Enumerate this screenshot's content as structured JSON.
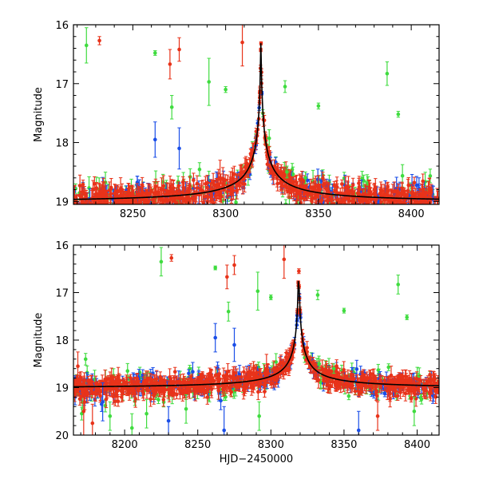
{
  "chart_data": [
    {
      "type": "scatter",
      "panel": "top",
      "title": "",
      "xlabel": "",
      "ylabel": "Magnitude",
      "xlim": [
        8218,
        8415
      ],
      "ylim": [
        19.05,
        16.0
      ],
      "y_inverted": true,
      "xticks": [
        8250,
        8300,
        8350,
        8400
      ],
      "yticks": [
        16,
        17,
        18,
        19
      ],
      "model_curve": {
        "color": "#000000",
        "peak_x": 8319,
        "peak_mag": 16.2,
        "baseline_mag": 19.02,
        "width_days": 7
      },
      "series": [
        {
          "color": "#e8331a",
          "marker": "dot-with-errorbar"
        },
        {
          "color": "#1a4ee8",
          "marker": "dot-with-errorbar"
        },
        {
          "color": "#3fdc3f",
          "marker": "dot-with-errorbar"
        }
      ],
      "outliers": [
        {
          "x": 8225,
          "y": 16.35,
          "err": 0.3,
          "color": "#3fdc3f"
        },
        {
          "x": 8232,
          "y": 16.27,
          "err": 0.07,
          "color": "#e8331a"
        },
        {
          "x": 8262,
          "y": 16.48,
          "err": 0.04,
          "color": "#3fdc3f"
        },
        {
          "x": 8270,
          "y": 16.67,
          "err": 0.25,
          "color": "#e8331a"
        },
        {
          "x": 8275,
          "y": 16.42,
          "err": 0.2,
          "color": "#e8331a"
        },
        {
          "x": 8271,
          "y": 17.4,
          "err": 0.2,
          "color": "#3fdc3f"
        },
        {
          "x": 8291,
          "y": 16.97,
          "err": 0.4,
          "color": "#3fdc3f"
        },
        {
          "x": 8309,
          "y": 16.3,
          "err": 0.4,
          "color": "#e8331a"
        },
        {
          "x": 8332,
          "y": 17.05,
          "err": 0.1,
          "color": "#3fdc3f"
        },
        {
          "x": 8350,
          "y": 17.38,
          "err": 0.05,
          "color": "#3fdc3f"
        },
        {
          "x": 8387,
          "y": 16.83,
          "err": 0.2,
          "color": "#3fdc3f"
        },
        {
          "x": 8393,
          "y": 17.52,
          "err": 0.05,
          "color": "#3fdc3f"
        },
        {
          "x": 8300,
          "y": 17.1,
          "err": 0.05,
          "color": "#3fdc3f"
        },
        {
          "x": 8333,
          "y": 18.5,
          "err": 0.1,
          "color": "#3fdc3f"
        },
        {
          "x": 8343,
          "y": 18.6,
          "err": 0.1,
          "color": "#3fdc3f"
        },
        {
          "x": 8262,
          "y": 17.95,
          "err": 0.3,
          "color": "#1a4ee8"
        },
        {
          "x": 8275,
          "y": 18.1,
          "err": 0.35,
          "color": "#1a4ee8"
        },
        {
          "x": 8297,
          "y": 18.6,
          "err": 0.3,
          "color": "#e8331a"
        }
      ]
    },
    {
      "type": "scatter",
      "panel": "bottom",
      "title": "",
      "xlabel": "HJD−2450000",
      "ylabel": "Magnitude",
      "xlim": [
        8165,
        8415
      ],
      "ylim": [
        20.0,
        16.0
      ],
      "y_inverted": true,
      "xticks": [
        8200,
        8250,
        8300,
        8350,
        8400
      ],
      "yticks": [
        16,
        17,
        18,
        19,
        20
      ],
      "model_curve": {
        "color": "#000000",
        "peak_x": 8319,
        "peak_mag": 16.2,
        "baseline_mag": 19.02,
        "width_days": 7
      },
      "series": [
        {
          "color": "#e8331a",
          "marker": "dot-with-errorbar"
        },
        {
          "color": "#1a4ee8",
          "marker": "dot-with-errorbar"
        },
        {
          "color": "#3fdc3f",
          "marker": "dot-with-errorbar"
        }
      ],
      "outliers": [
        {
          "x": 8225,
          "y": 16.35,
          "err": 0.3,
          "color": "#3fdc3f"
        },
        {
          "x": 8232,
          "y": 16.27,
          "err": 0.07,
          "color": "#e8331a"
        },
        {
          "x": 8262,
          "y": 16.48,
          "err": 0.04,
          "color": "#3fdc3f"
        },
        {
          "x": 8270,
          "y": 16.67,
          "err": 0.25,
          "color": "#e8331a"
        },
        {
          "x": 8275,
          "y": 16.42,
          "err": 0.2,
          "color": "#e8331a"
        },
        {
          "x": 8271,
          "y": 17.4,
          "err": 0.2,
          "color": "#3fdc3f"
        },
        {
          "x": 8291,
          "y": 16.97,
          "err": 0.4,
          "color": "#3fdc3f"
        },
        {
          "x": 8309,
          "y": 16.3,
          "err": 0.4,
          "color": "#e8331a"
        },
        {
          "x": 8332,
          "y": 17.05,
          "err": 0.1,
          "color": "#3fdc3f"
        },
        {
          "x": 8350,
          "y": 17.38,
          "err": 0.05,
          "color": "#3fdc3f"
        },
        {
          "x": 8387,
          "y": 16.83,
          "err": 0.2,
          "color": "#3fdc3f"
        },
        {
          "x": 8393,
          "y": 17.52,
          "err": 0.05,
          "color": "#3fdc3f"
        },
        {
          "x": 8300,
          "y": 17.1,
          "err": 0.05,
          "color": "#3fdc3f"
        },
        {
          "x": 8333,
          "y": 18.5,
          "err": 0.1,
          "color": "#3fdc3f"
        },
        {
          "x": 8343,
          "y": 18.6,
          "err": 0.1,
          "color": "#3fdc3f"
        },
        {
          "x": 8262,
          "y": 17.95,
          "err": 0.3,
          "color": "#1a4ee8"
        },
        {
          "x": 8275,
          "y": 18.1,
          "err": 0.35,
          "color": "#1a4ee8"
        },
        {
          "x": 8297,
          "y": 18.6,
          "err": 0.3,
          "color": "#e8331a"
        },
        {
          "x": 8168,
          "y": 18.55,
          "err": 0.3,
          "color": "#e8331a"
        },
        {
          "x": 8172,
          "y": 19.5,
          "err": 0.5,
          "color": "#e8331a"
        },
        {
          "x": 8178,
          "y": 19.75,
          "err": 0.4,
          "color": "#e8331a"
        },
        {
          "x": 8185,
          "y": 19.3,
          "err": 0.4,
          "color": "#1a4ee8"
        },
        {
          "x": 8190,
          "y": 19.6,
          "err": 0.3,
          "color": "#3fdc3f"
        },
        {
          "x": 8205,
          "y": 19.85,
          "err": 0.3,
          "color": "#3fdc3f"
        },
        {
          "x": 8215,
          "y": 19.55,
          "err": 0.3,
          "color": "#3fdc3f"
        },
        {
          "x": 8230,
          "y": 19.7,
          "err": 0.3,
          "color": "#1a4ee8"
        },
        {
          "x": 8242,
          "y": 19.45,
          "err": 0.3,
          "color": "#3fdc3f"
        },
        {
          "x": 8268,
          "y": 19.9,
          "err": 0.5,
          "color": "#1a4ee8"
        },
        {
          "x": 8292,
          "y": 19.6,
          "err": 0.3,
          "color": "#3fdc3f"
        },
        {
          "x": 8360,
          "y": 19.9,
          "err": 0.4,
          "color": "#1a4ee8"
        },
        {
          "x": 8373,
          "y": 19.6,
          "err": 0.3,
          "color": "#e8331a"
        },
        {
          "x": 8398,
          "y": 19.5,
          "err": 0.3,
          "color": "#3fdc3f"
        }
      ]
    }
  ]
}
